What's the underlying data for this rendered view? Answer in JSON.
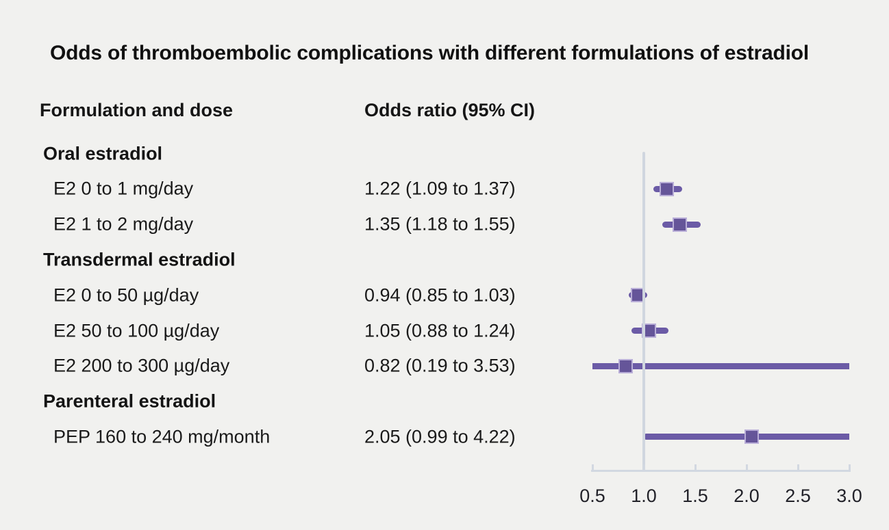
{
  "title": "Odds of thromboembolic complications with different formulations of estradiol",
  "column_headers": {
    "formulation": "Formulation and dose",
    "odds_ratio": "Odds ratio (95% CI)"
  },
  "colors": {
    "background": "#f1f1ef",
    "ci_line_purple": "#6b5ba6",
    "marker_fill": "#655599",
    "marker_border": "#b9aed8",
    "axis_gray": "#d2d8e1",
    "text": "#1a1a1a"
  },
  "chart_data": {
    "type": "forest",
    "title": "Odds of thromboembolic complications with different formulations of estradiol",
    "xlabel": "",
    "legend": null,
    "grid": false,
    "x_axis": {
      "min": 0.5,
      "max": 3.0,
      "tick_values": [
        0.5,
        1.0,
        1.5,
        2.0,
        2.5,
        3.0
      ],
      "tick_labels": [
        "0.5",
        "1.0",
        "1.5",
        "2.0",
        "2.5",
        "3.0"
      ],
      "reference_line": 1.0
    },
    "rows": [
      {
        "kind": "group",
        "label": "Oral estradiol"
      },
      {
        "kind": "item",
        "label": "E2 0 to 1 mg/day",
        "or_text": "1.22 (1.09 to 1.37)",
        "estimate": 1.22,
        "ci_low": 1.09,
        "ci_high": 1.37
      },
      {
        "kind": "item",
        "label": "E2 1 to 2 mg/day",
        "or_text": "1.35 (1.18 to 1.55)",
        "estimate": 1.35,
        "ci_low": 1.18,
        "ci_high": 1.55
      },
      {
        "kind": "group",
        "label": "Transdermal estradiol"
      },
      {
        "kind": "item",
        "label": "E2 0 to 50 µg/day",
        "or_text": "0.94 (0.85 to 1.03)",
        "estimate": 0.94,
        "ci_low": 0.85,
        "ci_high": 1.03
      },
      {
        "kind": "item",
        "label": "E2 50 to 100 µg/day",
        "or_text": "1.05 (0.88 to 1.24)",
        "estimate": 1.05,
        "ci_low": 0.88,
        "ci_high": 1.24
      },
      {
        "kind": "item",
        "label": "E2 200 to 300 µg/day",
        "or_text": "0.82 (0.19 to 3.53)",
        "estimate": 0.82,
        "ci_low": 0.19,
        "ci_high": 3.53
      },
      {
        "kind": "group",
        "label": "Parenteral estradiol"
      },
      {
        "kind": "item",
        "label": "PEP 160 to 240 mg/month",
        "or_text": "2.05 (0.99 to 4.22)",
        "estimate": 2.05,
        "ci_low": 0.99,
        "ci_high": 4.22
      }
    ]
  }
}
